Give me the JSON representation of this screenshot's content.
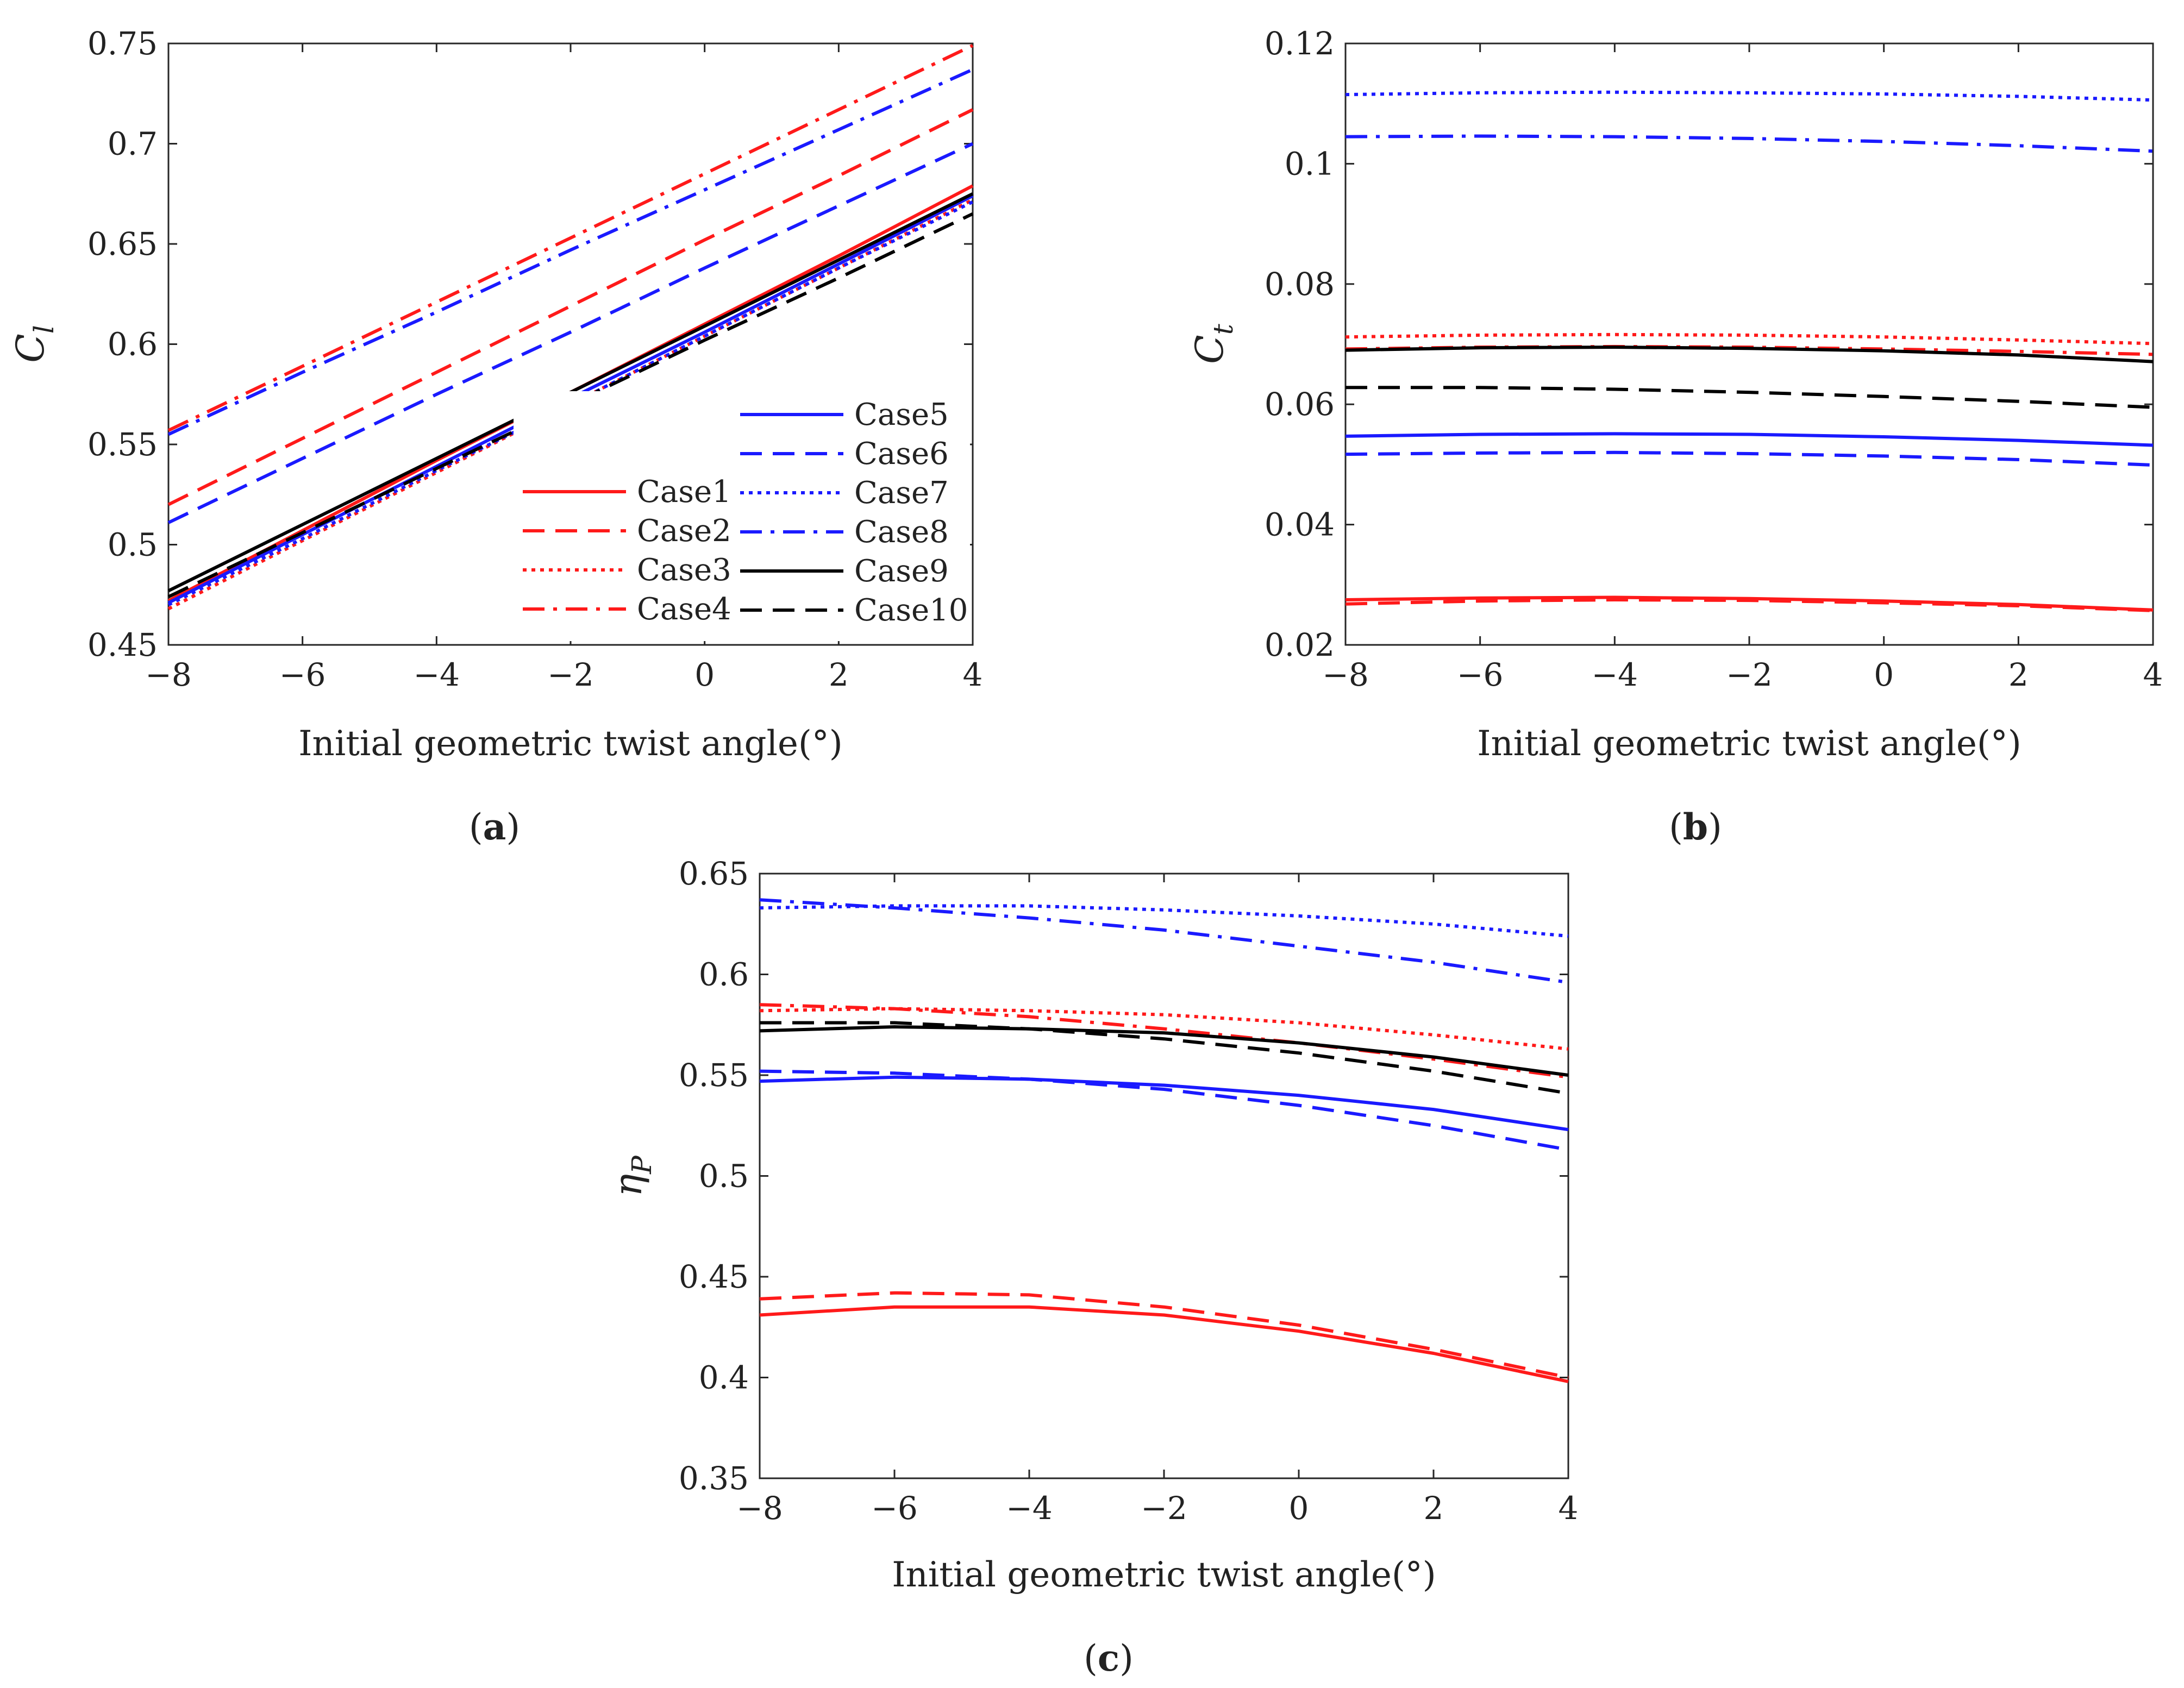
{
  "colors": {
    "red": "#ff1a1a",
    "blue": "#1a1aff",
    "black": "#000000",
    "axis": "#262626"
  },
  "line_styles": {
    "solid": "",
    "dashed": "40 20",
    "dotted": "7 9",
    "dashdot": "40 16 7 16"
  },
  "chart_data": [
    {
      "panel_label": "a",
      "type": "line",
      "xlabel": "Initial geometric twist angle(°)",
      "ylabel": {
        "main": "C",
        "sub": "l"
      },
      "xlim": [
        -8,
        4
      ],
      "ylim": [
        0.45,
        0.75
      ],
      "xticks": [
        -8,
        -6,
        -4,
        -2,
        0,
        2,
        4
      ],
      "xtick_labels": [
        "−8",
        "−6",
        "−4",
        "−2",
        "0",
        "2",
        "4"
      ],
      "yticks": [
        0.45,
        0.5,
        0.55,
        0.6,
        0.65,
        0.7,
        0.75
      ],
      "ytick_labels": [
        "0.45",
        "0.5",
        "0.55",
        "0.6",
        "0.65",
        "0.7",
        "0.75"
      ],
      "x": [
        -8,
        -6,
        -4,
        -2,
        0,
        2,
        4
      ],
      "legend_columns": [
        [
          "Case1",
          "Case2",
          "Case3",
          "Case4"
        ],
        [
          "Case5",
          "Case6",
          "Case7",
          "Case8",
          "Case9",
          "Case10"
        ]
      ],
      "series": [
        {
          "name": "Case1",
          "color": "red",
          "style": "solid",
          "values": [
            0.472,
            0.507,
            0.542,
            0.576,
            0.61,
            0.644,
            0.679
          ]
        },
        {
          "name": "Case2",
          "color": "red",
          "style": "dashed",
          "values": [
            0.52,
            0.553,
            0.586,
            0.619,
            0.652,
            0.684,
            0.717
          ]
        },
        {
          "name": "Case3",
          "color": "red",
          "style": "dotted",
          "values": [
            0.468,
            0.502,
            0.536,
            0.57,
            0.604,
            0.638,
            0.672
          ]
        },
        {
          "name": "Case4",
          "color": "red",
          "style": "dashdot",
          "values": [
            0.557,
            0.589,
            0.621,
            0.653,
            0.685,
            0.717,
            0.749
          ]
        },
        {
          "name": "Case5",
          "color": "blue",
          "style": "solid",
          "values": [
            0.471,
            0.505,
            0.539,
            0.573,
            0.606,
            0.64,
            0.674
          ]
        },
        {
          "name": "Case6",
          "color": "blue",
          "style": "dashed",
          "values": [
            0.511,
            0.543,
            0.575,
            0.606,
            0.638,
            0.669,
            0.7
          ]
        },
        {
          "name": "Case7",
          "color": "blue",
          "style": "dotted",
          "values": [
            0.47,
            0.503,
            0.537,
            0.57,
            0.604,
            0.638,
            0.671
          ]
        },
        {
          "name": "Case8",
          "color": "blue",
          "style": "dashdot",
          "values": [
            0.555,
            0.586,
            0.616,
            0.647,
            0.677,
            0.707,
            0.737
          ]
        },
        {
          "name": "Case9",
          "color": "black",
          "style": "solid",
          "values": [
            0.477,
            0.51,
            0.543,
            0.576,
            0.609,
            0.642,
            0.675
          ]
        },
        {
          "name": "Case10",
          "color": "black",
          "style": "dashed",
          "values": [
            0.474,
            0.506,
            0.538,
            0.57,
            0.602,
            0.633,
            0.665
          ]
        }
      ]
    },
    {
      "panel_label": "b",
      "type": "line",
      "xlabel": "Initial geometric twist angle(°)",
      "ylabel": {
        "main": "C",
        "sub": "t"
      },
      "xlim": [
        -8,
        4
      ],
      "ylim": [
        0.02,
        0.12
      ],
      "xticks": [
        -8,
        -6,
        -4,
        -2,
        0,
        2,
        4
      ],
      "xtick_labels": [
        "−8",
        "−6",
        "−4",
        "−2",
        "0",
        "2",
        "4"
      ],
      "yticks": [
        0.02,
        0.04,
        0.06,
        0.08,
        0.1,
        0.12
      ],
      "ytick_labels": [
        "0.02",
        "0.04",
        "0.06",
        "0.08",
        "0.1",
        "0.12"
      ],
      "x": [
        -8,
        -6,
        -4,
        -2,
        0,
        2,
        4
      ],
      "series": [
        {
          "name": "Case1",
          "color": "red",
          "style": "solid",
          "values": [
            0.0275,
            0.0278,
            0.0279,
            0.0277,
            0.0273,
            0.0267,
            0.0258
          ]
        },
        {
          "name": "Case2",
          "color": "red",
          "style": "dashed",
          "values": [
            0.0268,
            0.0273,
            0.0275,
            0.0274,
            0.027,
            0.0265,
            0.0257
          ]
        },
        {
          "name": "Case3",
          "color": "red",
          "style": "dotted",
          "values": [
            0.0712,
            0.0715,
            0.0716,
            0.0715,
            0.0712,
            0.0707,
            0.0701
          ]
        },
        {
          "name": "Case4",
          "color": "red",
          "style": "dashdot",
          "values": [
            0.0692,
            0.0695,
            0.0696,
            0.0695,
            0.0692,
            0.0688,
            0.0683
          ]
        },
        {
          "name": "Case5",
          "color": "blue",
          "style": "solid",
          "values": [
            0.0547,
            0.055,
            0.0551,
            0.055,
            0.0546,
            0.054,
            0.0532
          ]
        },
        {
          "name": "Case6",
          "color": "blue",
          "style": "dashed",
          "values": [
            0.0517,
            0.0519,
            0.052,
            0.0518,
            0.0514,
            0.0508,
            0.0499
          ]
        },
        {
          "name": "Case7",
          "color": "blue",
          "style": "dotted",
          "values": [
            0.1115,
            0.1118,
            0.1119,
            0.1118,
            0.1116,
            0.1112,
            0.1106
          ]
        },
        {
          "name": "Case8",
          "color": "blue",
          "style": "dashdot",
          "values": [
            0.1045,
            0.1046,
            0.1045,
            0.1042,
            0.1037,
            0.103,
            0.1021
          ]
        },
        {
          "name": "Case9",
          "color": "black",
          "style": "solid",
          "values": [
            0.069,
            0.0694,
            0.0695,
            0.0693,
            0.0689,
            0.0682,
            0.0671
          ]
        },
        {
          "name": "Case10",
          "color": "black",
          "style": "dashed",
          "values": [
            0.0628,
            0.0628,
            0.0625,
            0.062,
            0.0613,
            0.0605,
            0.0595
          ]
        }
      ]
    },
    {
      "panel_label": "c",
      "type": "line",
      "xlabel": "Initial geometric twist angle(°)",
      "ylabel": {
        "main": "η",
        "sub": "P"
      },
      "xlim": [
        -8,
        4
      ],
      "ylim": [
        0.35,
        0.65
      ],
      "xticks": [
        -8,
        -6,
        -4,
        -2,
        0,
        2,
        4
      ],
      "xtick_labels": [
        "−8",
        "−6",
        "−4",
        "−2",
        "0",
        "2",
        "4"
      ],
      "yticks": [
        0.35,
        0.4,
        0.45,
        0.5,
        0.55,
        0.6,
        0.65
      ],
      "ytick_labels": [
        "0.35",
        "0.4",
        "0.45",
        "0.5",
        "0.55",
        "0.6",
        "0.65"
      ],
      "x": [
        -8,
        -6,
        -4,
        -2,
        0,
        2,
        4
      ],
      "series": [
        {
          "name": "Case1",
          "color": "red",
          "style": "solid",
          "values": [
            0.431,
            0.435,
            0.435,
            0.431,
            0.423,
            0.412,
            0.398
          ]
        },
        {
          "name": "Case2",
          "color": "red",
          "style": "dashed",
          "values": [
            0.439,
            0.442,
            0.441,
            0.435,
            0.426,
            0.414,
            0.4
          ]
        },
        {
          "name": "Case3",
          "color": "red",
          "style": "dotted",
          "values": [
            0.582,
            0.583,
            0.582,
            0.58,
            0.576,
            0.57,
            0.563
          ]
        },
        {
          "name": "Case4",
          "color": "red",
          "style": "dashdot",
          "values": [
            0.585,
            0.583,
            0.579,
            0.573,
            0.566,
            0.558,
            0.549
          ]
        },
        {
          "name": "Case5",
          "color": "blue",
          "style": "solid",
          "values": [
            0.547,
            0.549,
            0.548,
            0.545,
            0.54,
            0.533,
            0.523
          ]
        },
        {
          "name": "Case6",
          "color": "blue",
          "style": "dashed",
          "values": [
            0.552,
            0.551,
            0.548,
            0.543,
            0.535,
            0.525,
            0.513
          ]
        },
        {
          "name": "Case7",
          "color": "blue",
          "style": "dotted",
          "values": [
            0.633,
            0.634,
            0.634,
            0.632,
            0.629,
            0.625,
            0.619
          ]
        },
        {
          "name": "Case8",
          "color": "blue",
          "style": "dashdot",
          "values": [
            0.637,
            0.633,
            0.628,
            0.622,
            0.614,
            0.606,
            0.596
          ]
        },
        {
          "name": "Case9",
          "color": "black",
          "style": "solid",
          "values": [
            0.572,
            0.574,
            0.573,
            0.571,
            0.566,
            0.559,
            0.55
          ]
        },
        {
          "name": "Case10",
          "color": "black",
          "style": "dashed",
          "values": [
            0.576,
            0.576,
            0.573,
            0.568,
            0.561,
            0.552,
            0.541
          ]
        }
      ]
    }
  ]
}
